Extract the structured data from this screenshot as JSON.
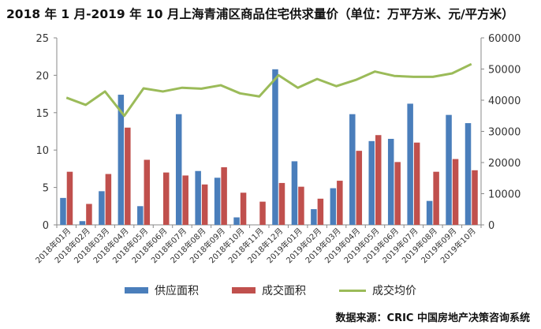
{
  "title": "2018 年 1 月-2019 年 10 月上海青浦区商品住宅供求量价（单位：万平方米、元/平方米）",
  "source": "数据来源：CRIC 中国房地产决策咨询系统",
  "chart_data": {
    "type": "bar",
    "categories": [
      "2018年01月",
      "2018年02月",
      "2018年03月",
      "2018年04月",
      "2018年05月",
      "2018年06月",
      "2018年07月",
      "2018年08月",
      "2018年09月",
      "2018年10月",
      "2018年11月",
      "2018年12月",
      "2019年01月",
      "2019年02月",
      "2019年03月",
      "2019年04月",
      "2019年05月",
      "2019年06月",
      "2019年07月",
      "2019年08月",
      "2019年09月",
      "2019年10月"
    ],
    "series": [
      {
        "name": "供应面积",
        "type": "bar",
        "axis": "left",
        "color": "#4a7ebb",
        "values": [
          3.6,
          0.5,
          4.5,
          17.4,
          2.5,
          0,
          14.8,
          7.2,
          6.3,
          1.0,
          0,
          20.8,
          8.5,
          2.1,
          4.9,
          14.8,
          11.2,
          11.5,
          16.2,
          3.2,
          14.7,
          13.6
        ]
      },
      {
        "name": "成交面积",
        "type": "bar",
        "axis": "left",
        "color": "#c0504d",
        "values": [
          7.1,
          2.8,
          6.8,
          13.0,
          8.7,
          7.0,
          6.6,
          5.4,
          7.7,
          4.3,
          3.1,
          5.6,
          5.1,
          3.5,
          5.9,
          9.9,
          12.0,
          8.4,
          11.0,
          7.1,
          8.8,
          7.3
        ]
      },
      {
        "name": "成交均价",
        "type": "line",
        "axis": "right",
        "color": "#9bbb59",
        "values": [
          40800,
          38500,
          42800,
          35000,
          43800,
          42800,
          44000,
          43700,
          44800,
          42200,
          41200,
          48000,
          44000,
          46800,
          44500,
          46500,
          49200,
          47800,
          47500,
          47500,
          48600,
          51600
        ]
      }
    ],
    "y_left": {
      "min": 0,
      "max": 25,
      "ticks": [
        0,
        5,
        10,
        15,
        20,
        25
      ]
    },
    "y_right": {
      "min": 0,
      "max": 60000,
      "ticks": [
        0,
        10000,
        20000,
        30000,
        40000,
        50000,
        60000
      ]
    },
    "legend_position": "bottom"
  }
}
